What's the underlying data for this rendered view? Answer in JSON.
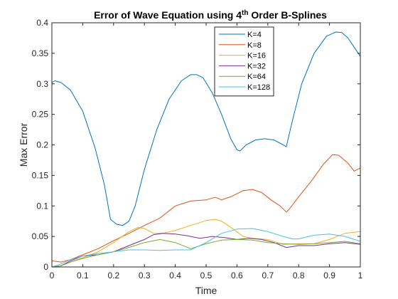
{
  "chart_data": {
    "type": "line",
    "title": "Error of Wave Equation using 4",
    "title_superscript": "th",
    "title_suffix": " Order B-Splines",
    "xlabel": "Time",
    "ylabel": "Max Error",
    "xlim": [
      0,
      1
    ],
    "ylim": [
      0,
      0.4
    ],
    "xticks": [
      0,
      0.1,
      0.2,
      0.3,
      0.4,
      0.5,
      0.6,
      0.7,
      0.8,
      0.9,
      1
    ],
    "xtick_labels": [
      "0",
      "0.1",
      "0.2",
      "0.3",
      "0.4",
      "0.5",
      "0.6",
      "0.7",
      "0.8",
      "0.9",
      "1"
    ],
    "yticks": [
      0,
      0.05,
      0.1,
      0.15,
      0.2,
      0.25,
      0.3,
      0.35,
      0.4
    ],
    "ytick_labels": [
      "0",
      "0.05",
      "0.1",
      "0.15",
      "0.2",
      "0.25",
      "0.3",
      "0.35",
      "0.4"
    ],
    "grid": false,
    "legend_position": "top-right",
    "series": [
      {
        "name": "K=4",
        "color": "#0072BD",
        "x": [
          0,
          0.01,
          0.03,
          0.06,
          0.1,
          0.14,
          0.17,
          0.19,
          0.21,
          0.23,
          0.25,
          0.27,
          0.3,
          0.34,
          0.38,
          0.42,
          0.45,
          0.47,
          0.49,
          0.52,
          0.55,
          0.58,
          0.6,
          0.61,
          0.63,
          0.66,
          0.69,
          0.72,
          0.75,
          0.76,
          0.78,
          0.81,
          0.85,
          0.89,
          0.92,
          0.94,
          0.96,
          0.98,
          1
        ],
        "y": [
          0.302,
          0.305,
          0.302,
          0.29,
          0.255,
          0.195,
          0.135,
          0.078,
          0.07,
          0.068,
          0.075,
          0.1,
          0.16,
          0.225,
          0.275,
          0.305,
          0.315,
          0.315,
          0.31,
          0.285,
          0.25,
          0.21,
          0.192,
          0.19,
          0.2,
          0.208,
          0.21,
          0.208,
          0.2,
          0.197,
          0.24,
          0.3,
          0.35,
          0.378,
          0.385,
          0.384,
          0.375,
          0.36,
          0.345
        ]
      },
      {
        "name": "K=8",
        "color": "#D95319",
        "x": [
          0,
          0.03,
          0.06,
          0.1,
          0.15,
          0.2,
          0.25,
          0.3,
          0.35,
          0.4,
          0.45,
          0.5,
          0.53,
          0.55,
          0.58,
          0.62,
          0.65,
          0.68,
          0.71,
          0.74,
          0.76,
          0.77,
          0.8,
          0.84,
          0.88,
          0.91,
          0.93,
          0.96,
          0.98,
          1
        ],
        "y": [
          0.01,
          0.008,
          0.012,
          0.02,
          0.03,
          0.043,
          0.055,
          0.068,
          0.08,
          0.1,
          0.108,
          0.11,
          0.114,
          0.11,
          0.115,
          0.125,
          0.127,
          0.122,
          0.11,
          0.1,
          0.09,
          0.095,
          0.115,
          0.14,
          0.168,
          0.184,
          0.183,
          0.17,
          0.157,
          0.162
        ]
      },
      {
        "name": "K=16",
        "color": "#EDB120",
        "x": [
          0,
          0.03,
          0.06,
          0.1,
          0.15,
          0.2,
          0.25,
          0.28,
          0.3,
          0.33,
          0.36,
          0.4,
          0.45,
          0.5,
          0.53,
          0.55,
          0.58,
          0.62,
          0.65,
          0.7,
          0.75,
          0.8,
          0.85,
          0.9,
          0.95,
          1
        ],
        "y": [
          0,
          0.002,
          0.008,
          0.015,
          0.025,
          0.04,
          0.058,
          0.065,
          0.063,
          0.055,
          0.055,
          0.06,
          0.068,
          0.076,
          0.078,
          0.075,
          0.065,
          0.05,
          0.047,
          0.045,
          0.037,
          0.038,
          0.038,
          0.045,
          0.055,
          0.058
        ]
      },
      {
        "name": "K=32",
        "color": "#7E2F8E",
        "x": [
          0,
          0.03,
          0.06,
          0.1,
          0.15,
          0.2,
          0.25,
          0.3,
          0.33,
          0.36,
          0.4,
          0.44,
          0.48,
          0.52,
          0.56,
          0.6,
          0.64,
          0.68,
          0.72,
          0.76,
          0.8,
          0.85,
          0.9,
          0.95,
          1
        ],
        "y": [
          0,
          0.002,
          0.01,
          0.018,
          0.02,
          0.025,
          0.035,
          0.045,
          0.053,
          0.055,
          0.054,
          0.051,
          0.047,
          0.05,
          0.048,
          0.045,
          0.047,
          0.045,
          0.04,
          0.032,
          0.035,
          0.035,
          0.038,
          0.04,
          0.037
        ]
      },
      {
        "name": "K=64",
        "color": "#77AC30",
        "x": [
          0,
          0.03,
          0.06,
          0.1,
          0.15,
          0.2,
          0.25,
          0.3,
          0.35,
          0.4,
          0.45,
          0.5,
          0.55,
          0.6,
          0.65,
          0.7,
          0.75,
          0.8,
          0.85,
          0.9,
          0.95,
          1
        ],
        "y": [
          0,
          0.002,
          0.008,
          0.014,
          0.02,
          0.025,
          0.032,
          0.04,
          0.045,
          0.04,
          0.03,
          0.038,
          0.044,
          0.045,
          0.044,
          0.04,
          0.038,
          0.037,
          0.038,
          0.04,
          0.042,
          0.038
        ]
      },
      {
        "name": "K=128",
        "color": "#4DBEEE",
        "x": [
          0,
          0.03,
          0.06,
          0.1,
          0.15,
          0.2,
          0.25,
          0.3,
          0.35,
          0.4,
          0.45,
          0.5,
          0.55,
          0.6,
          0.65,
          0.7,
          0.75,
          0.78,
          0.8,
          0.85,
          0.9,
          0.95,
          1
        ],
        "y": [
          0,
          0.005,
          0.012,
          0.018,
          0.022,
          0.025,
          0.028,
          0.028,
          0.027,
          0.028,
          0.028,
          0.04,
          0.055,
          0.062,
          0.063,
          0.058,
          0.05,
          0.046,
          0.046,
          0.052,
          0.054,
          0.05,
          0.042
        ]
      }
    ]
  }
}
